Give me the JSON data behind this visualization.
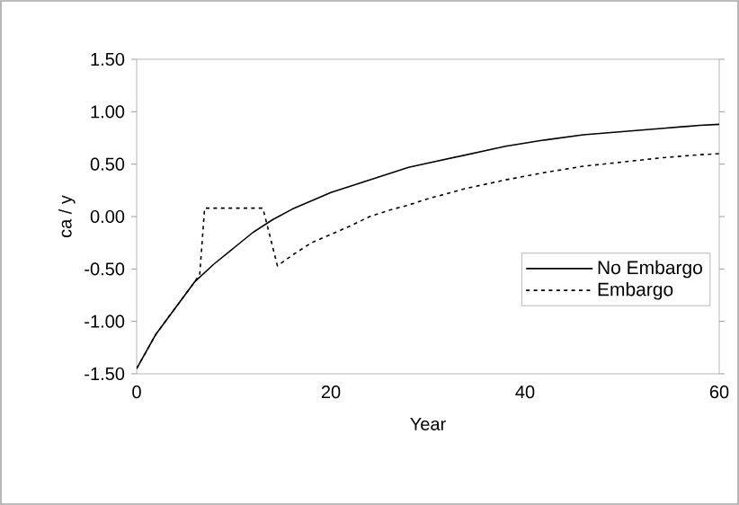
{
  "chart_data": {
    "type": "line",
    "xlabel": "Year",
    "ylabel": "ca / y",
    "xlim": [
      0,
      60
    ],
    "xticks": [
      0,
      20,
      40,
      60
    ],
    "ylim": [
      -1.5,
      1.5
    ],
    "yticks": [
      {
        "value": -1.5,
        "label": "-1.50"
      },
      {
        "value": -1.0,
        "label": "-1.00"
      },
      {
        "value": -0.5,
        "label": "-0.50"
      },
      {
        "value": 0,
        "label": "0.00"
      },
      {
        "value": 0.5,
        "label": "0.50"
      },
      {
        "value": 1.0,
        "label": "1.00"
      },
      {
        "value": 1.5,
        "label": "1.50"
      }
    ],
    "grid": false,
    "legend": "right",
    "marker": "none",
    "series": [
      {
        "name": "No Embargo",
        "color": "#000000",
        "line_style": "solid",
        "x": [
          0,
          2,
          4,
          6,
          8,
          10,
          12,
          14,
          16,
          18,
          20,
          22,
          24,
          26,
          28,
          30,
          34,
          38,
          42,
          46,
          50,
          54,
          58,
          60
        ],
        "values": [
          -1.45,
          -1.12,
          -0.87,
          -0.62,
          -0.45,
          -0.3,
          -0.15,
          -0.03,
          0.07,
          0.15,
          0.23,
          0.29,
          0.35,
          0.41,
          0.47,
          0.51,
          0.59,
          0.67,
          0.73,
          0.78,
          0.81,
          0.84,
          0.87,
          0.88
        ]
      },
      {
        "name": "Embargo",
        "color": "#000000",
        "line_style": "dotted",
        "x": [
          0,
          2,
          4,
          6,
          6.5,
          7,
          13,
          14.5,
          16,
          18,
          20,
          22,
          24,
          26,
          28,
          30,
          34,
          38,
          42,
          46,
          50,
          54,
          58,
          60
        ],
        "values": [
          -1.45,
          -1.12,
          -0.87,
          -0.62,
          -0.55,
          0.08,
          0.08,
          -0.47,
          -0.37,
          -0.25,
          -0.17,
          -0.09,
          0.0,
          0.06,
          0.11,
          0.17,
          0.27,
          0.35,
          0.42,
          0.48,
          0.52,
          0.56,
          0.59,
          0.6
        ]
      }
    ]
  }
}
